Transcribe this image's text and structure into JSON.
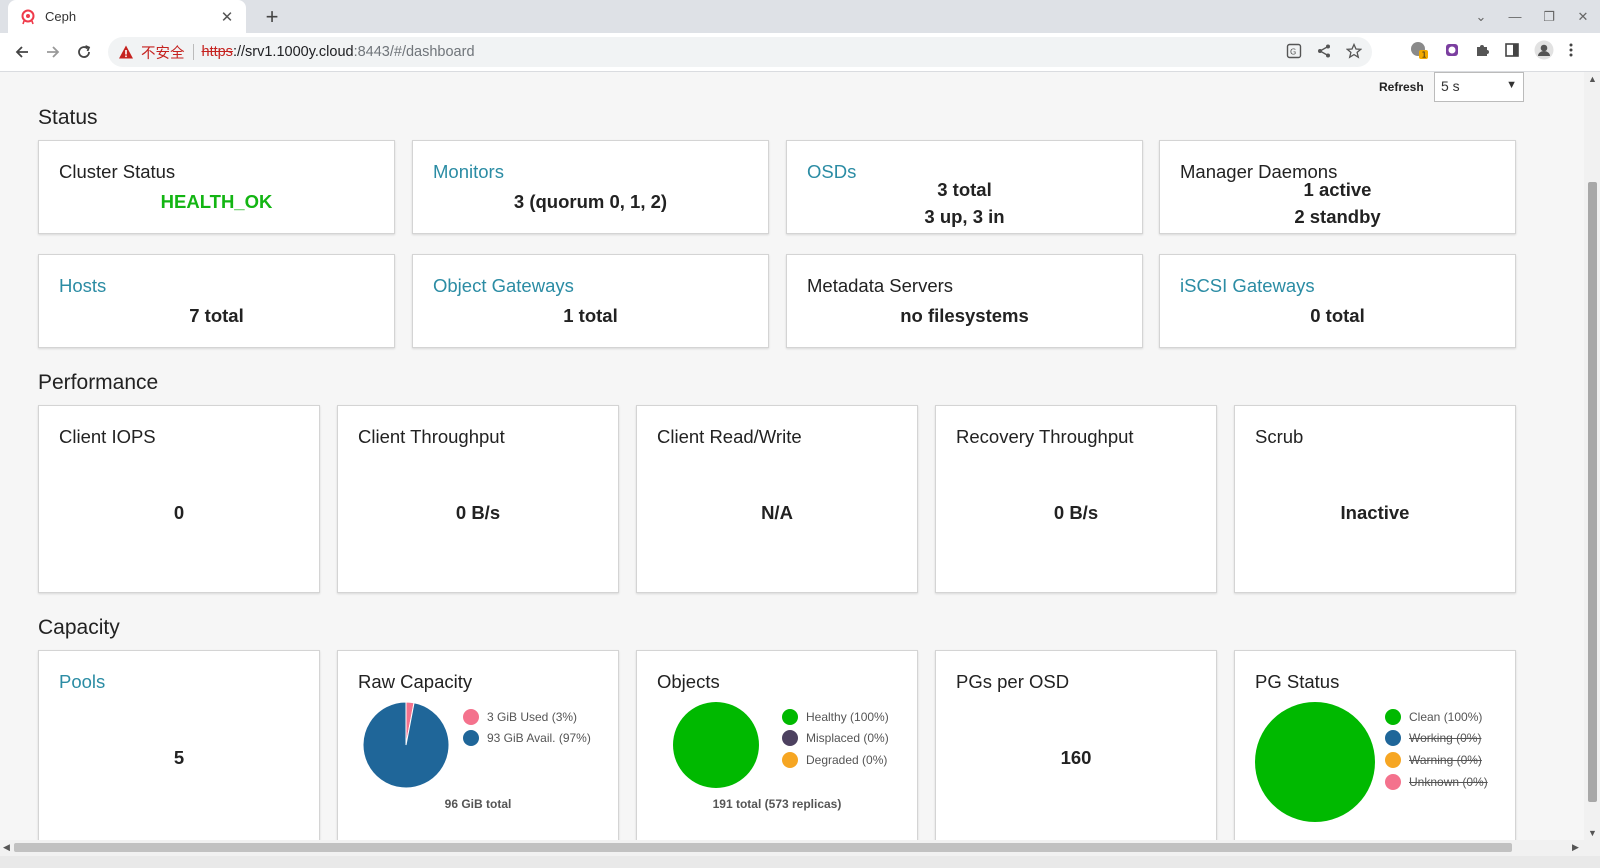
{
  "browser": {
    "tab_title": "Ceph",
    "insecure_label": "不安全",
    "url_scheme": "https",
    "url_host": "://srv1.1000y.cloud",
    "url_path": ":8443/#/dashboard"
  },
  "refresh": {
    "label": "Refresh",
    "selected": "5 s"
  },
  "sections": {
    "status": "Status",
    "performance": "Performance",
    "capacity": "Capacity"
  },
  "status": {
    "cluster": {
      "title": "Cluster Status",
      "value": "HEALTH_OK",
      "color": "#13b513"
    },
    "monitors": {
      "title": "Monitors",
      "value": "3 (quorum 0, 1, 2)"
    },
    "osds": {
      "title": "OSDs",
      "line1": "3 total",
      "line2": "3 up, 3 in"
    },
    "managers": {
      "title": "Manager Daemons",
      "line1": "1 active",
      "line2": "2 standby"
    },
    "hosts": {
      "title": "Hosts",
      "value": "7 total"
    },
    "object_gateways": {
      "title": "Object Gateways",
      "value": "1 total"
    },
    "metadata_servers": {
      "title": "Metadata Servers",
      "value": "no filesystems"
    },
    "iscsi_gateways": {
      "title": "iSCSI Gateways",
      "value": "0 total"
    }
  },
  "performance": {
    "client_iops": {
      "title": "Client IOPS",
      "value": "0"
    },
    "client_throughput": {
      "title": "Client Throughput",
      "value": "0 B/s"
    },
    "client_rw": {
      "title": "Client Read/Write",
      "value": "N/A"
    },
    "recovery_throughput": {
      "title": "Recovery Throughput",
      "value": "0 B/s"
    },
    "scrub": {
      "title": "Scrub",
      "value": "Inactive"
    }
  },
  "capacity": {
    "pools": {
      "title": "Pools",
      "value": "5"
    },
    "raw_capacity": {
      "title": "Raw Capacity",
      "legend": [
        "3 GiB Used (3%)",
        "93 GiB Avail. (97%)"
      ],
      "total": "96 GiB total"
    },
    "objects": {
      "title": "Objects",
      "legend": [
        "Healthy (100%)",
        "Misplaced (0%)",
        "Degraded (0%)"
      ],
      "total": "191 total (573 replicas)"
    },
    "pgs_per_osd": {
      "title": "PGs per OSD",
      "value": "160"
    },
    "pg_status": {
      "title": "PG Status",
      "legend": [
        "Clean (100%)",
        "Working (0%)",
        "Warning (0%)",
        "Unknown (0%)"
      ]
    }
  },
  "chart_data": [
    {
      "type": "pie",
      "categories": [
        "3 GiB Used (3%)",
        "93 GiB Avail. (97%)"
      ],
      "values": [
        3,
        97
      ],
      "colors": [
        "#f4728d",
        "#1f6699"
      ]
    },
    {
      "type": "pie",
      "categories": [
        "Healthy (100%)",
        "Misplaced (0%)",
        "Degraded (0%)"
      ],
      "values": [
        100,
        0,
        0
      ],
      "colors": [
        "#00b900",
        "#4d4160",
        "#f6a623"
      ]
    },
    {
      "type": "pie",
      "categories": [
        "Clean (100%)",
        "Working (0%)",
        "Warning (0%)",
        "Unknown (0%)"
      ],
      "values": [
        100,
        0,
        0,
        0
      ],
      "colors": [
        "#00b900",
        "#1f6699",
        "#f6a623",
        "#f4728d"
      ]
    }
  ]
}
